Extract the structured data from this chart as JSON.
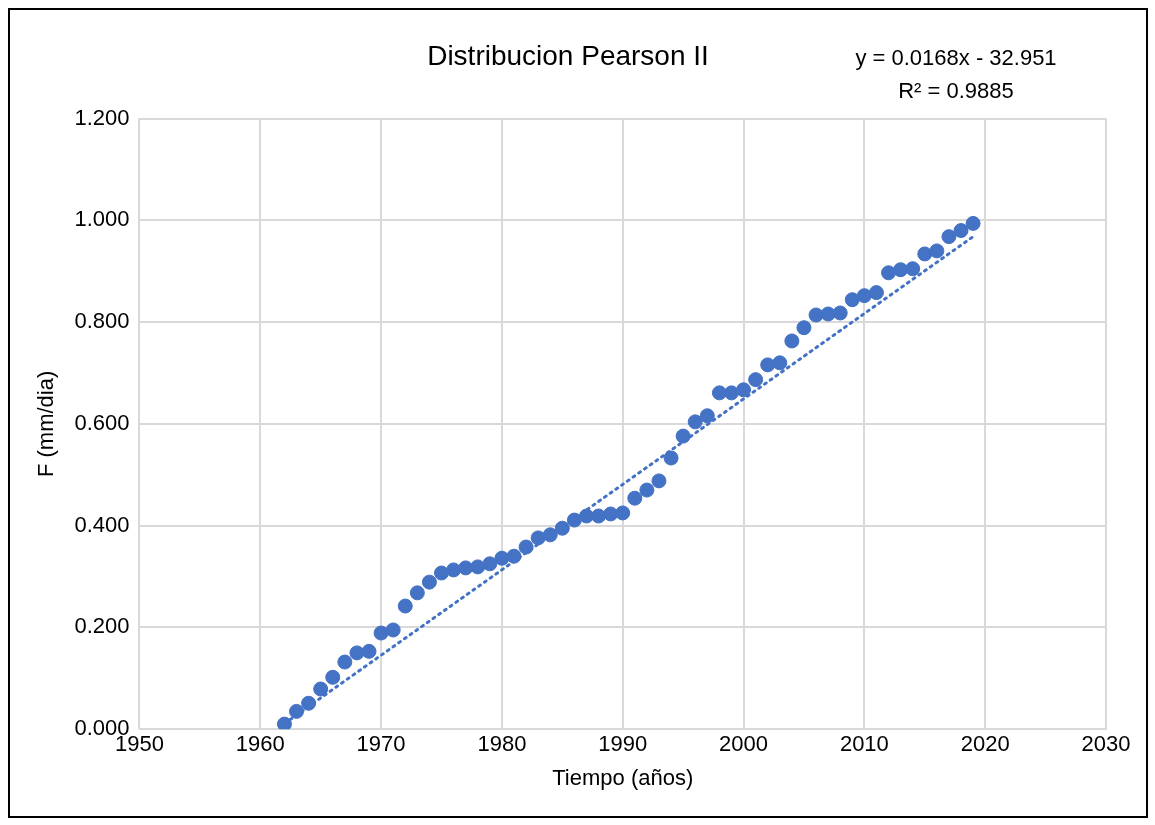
{
  "chart_data": {
    "type": "scatter",
    "title": "Distribucion Pearson II",
    "xlabel": "Tiempo (años)",
    "ylabel": "F (mm/dia)",
    "annotations": [
      "y = 0.0168x - 32.951",
      "R² = 0.9885"
    ],
    "x": [
      1962,
      1963,
      1964,
      1965,
      1966,
      1967,
      1968,
      1969,
      1970,
      1971,
      1972,
      1973,
      1974,
      1975,
      1976,
      1977,
      1978,
      1979,
      1980,
      1981,
      1982,
      1983,
      1984,
      1985,
      1986,
      1987,
      1988,
      1989,
      1990,
      1991,
      1992,
      1993,
      1994,
      1995,
      1996,
      1997,
      1998,
      1999,
      2000,
      2001,
      2002,
      2003,
      2004,
      2005,
      2006,
      2007,
      2008,
      2009,
      2010,
      2011,
      2012,
      2013,
      2014,
      2015,
      2016,
      2017,
      2018,
      2019
    ],
    "series": [
      {
        "color": "#4472c4",
        "marker": "circle",
        "values": [
          0.01,
          0.035,
          0.051,
          0.079,
          0.102,
          0.132,
          0.15,
          0.153,
          0.189,
          0.195,
          0.242,
          0.268,
          0.289,
          0.307,
          0.313,
          0.317,
          0.319,
          0.325,
          0.336,
          0.34,
          0.358,
          0.376,
          0.382,
          0.395,
          0.411,
          0.419,
          0.419,
          0.423,
          0.425,
          0.454,
          0.47,
          0.488,
          0.533,
          0.576,
          0.604,
          0.616,
          0.661,
          0.661,
          0.667,
          0.687,
          0.716,
          0.72,
          0.763,
          0.789,
          0.814,
          0.816,
          0.818,
          0.844,
          0.852,
          0.858,
          0.897,
          0.903,
          0.905,
          0.934,
          0.94,
          0.968,
          0.98,
          0.994
        ]
      },
      {
        "type": "line",
        "color": "#4472c4",
        "line_style": "dotted",
        "marker": "none",
        "x": [
          1962,
          2019
        ],
        "values": [
          0.011,
          0.968
        ]
      }
    ],
    "xlim": [
      1950,
      2030
    ],
    "xticks": [
      1950,
      1960,
      1970,
      1980,
      1990,
      2000,
      2010,
      2020,
      2030
    ],
    "ylim": [
      0,
      1.2
    ],
    "yticks": [
      {
        "value": 0,
        "label": "0.000"
      },
      {
        "value": 0.2,
        "label": "0.200"
      },
      {
        "value": 0.4,
        "label": "0.400"
      },
      {
        "value": 0.6,
        "label": "0.600"
      },
      {
        "value": 0.8,
        "label": "0.800"
      },
      {
        "value": 1,
        "label": "1.000"
      },
      {
        "value": 1.2,
        "label": "1.200"
      }
    ],
    "grid": true,
    "legend": false
  }
}
